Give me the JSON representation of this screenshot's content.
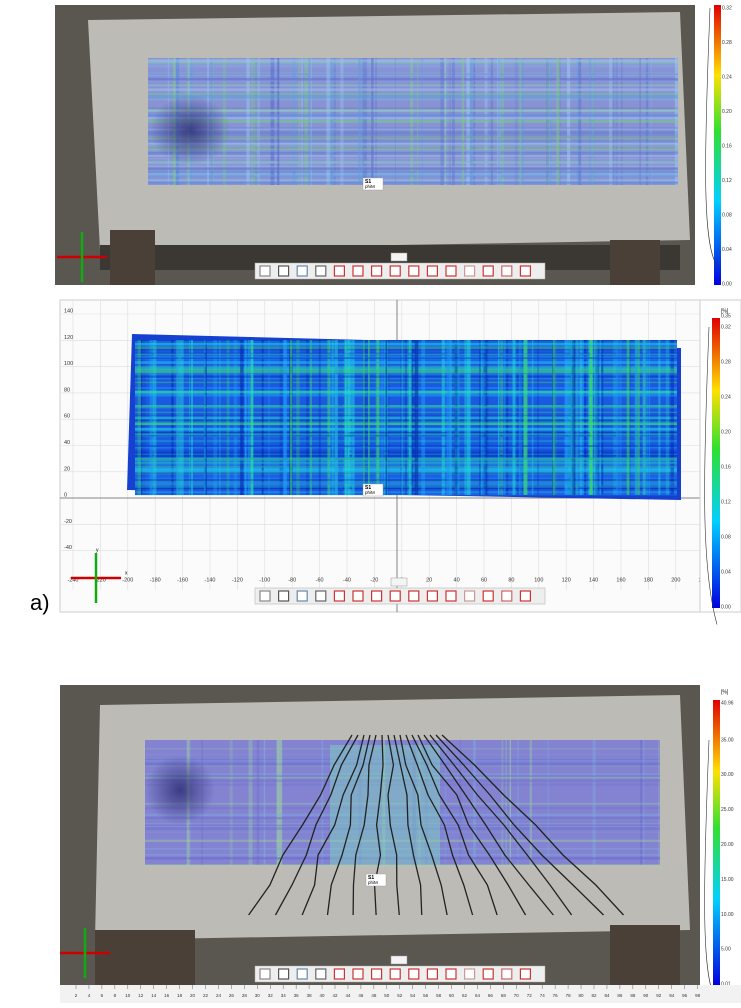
{
  "panel_label": "a)",
  "top": {
    "colorbar_ticks": [
      "0.32",
      "0.28",
      "0.24",
      "0.20",
      "0.16",
      "0.12",
      "0.08",
      "0.04",
      "0.00"
    ],
    "tag": "S1",
    "tag_sub": "phiM"
  },
  "middle": {
    "unit": "[%]",
    "colorbar_ticks": [
      "0.35",
      "0.32",
      "0.28",
      "0.24",
      "0.20",
      "0.16",
      "0.12",
      "0.08",
      "0.04",
      "0.00"
    ],
    "xticks": [
      "-240",
      "-220",
      "-200",
      "-180",
      "-160",
      "-140",
      "-120",
      "-100",
      "-80",
      "-60",
      "-40",
      "-20",
      "0",
      "20",
      "40",
      "60",
      "80",
      "100",
      "120",
      "140",
      "160",
      "180",
      "200",
      "220"
    ],
    "yticks": [
      "140",
      "120",
      "100",
      "80",
      "60",
      "40",
      "20",
      "0",
      "-20",
      "-40"
    ],
    "axis_x": "x",
    "axis_y": "y",
    "tag": "S1",
    "tag_sub": "phiM"
  },
  "bottom": {
    "unit": "[%]",
    "colorbar_ticks": [
      "40.96",
      "35.00",
      "30.00",
      "25.00",
      "20.00",
      "15.00",
      "10.00",
      "5.00",
      "0.01"
    ],
    "ruler": [
      "2",
      "4",
      "6",
      "8",
      "10",
      "12",
      "14",
      "16",
      "18",
      "20",
      "22",
      "24",
      "26",
      "28",
      "30",
      "32",
      "34",
      "36",
      "38",
      "40",
      "42",
      "44",
      "46",
      "48",
      "50",
      "52",
      "54",
      "56",
      "58",
      "60",
      "62",
      "64",
      "66",
      "68",
      "70",
      "72",
      "74",
      "76",
      "78",
      "80",
      "82",
      "84",
      "86",
      "88",
      "90",
      "92",
      "94",
      "96",
      "98"
    ],
    "tag": "S1",
    "tag_sub": "phiM"
  }
}
